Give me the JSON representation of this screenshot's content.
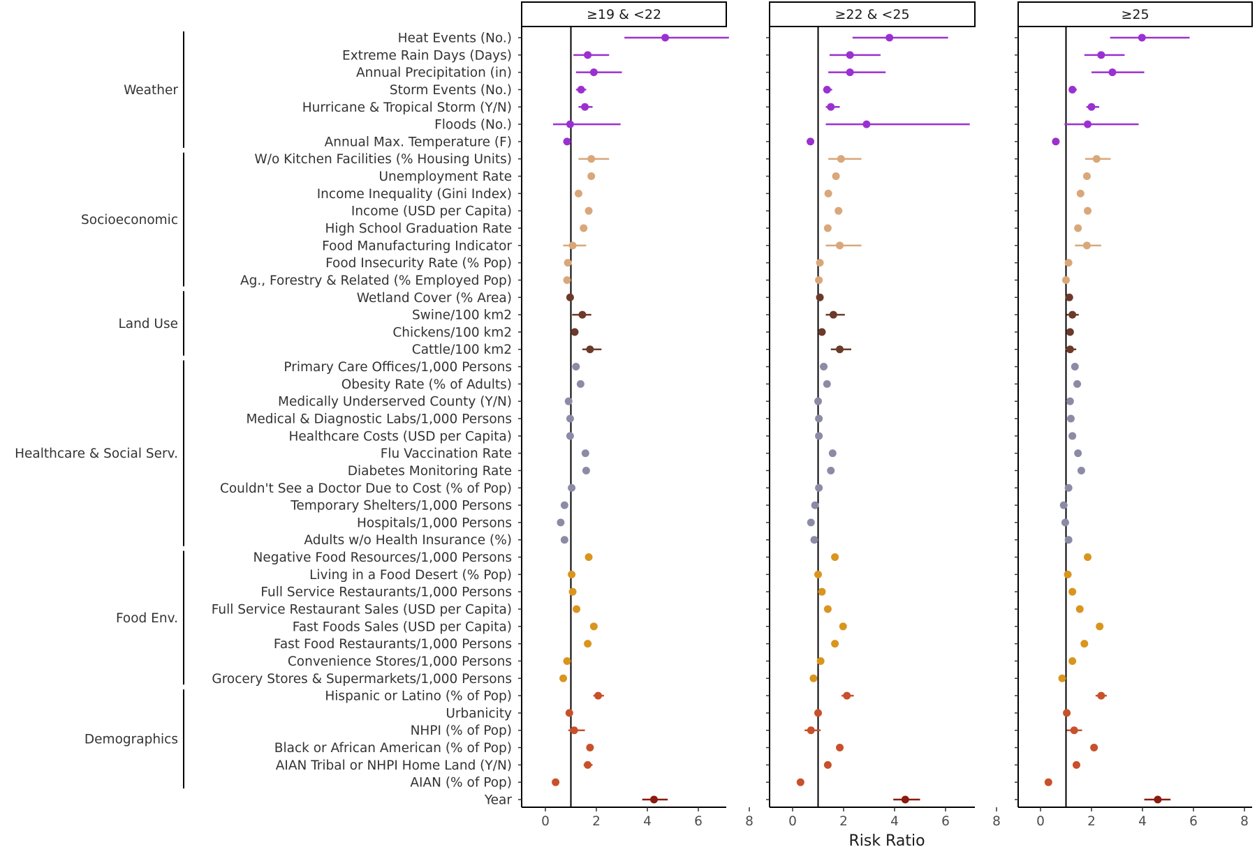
{
  "chart_data": {
    "type": "scatter",
    "subtype": "forest-plot",
    "xlabel": "Risk Ratio",
    "ylabel": "",
    "xlim": [
      -0.9,
      8.5
    ],
    "xticks": [
      0,
      2,
      4,
      6,
      8
    ],
    "reference_line": 1,
    "grid": false,
    "panels": [
      "≥19 & <22",
      "≥22 & <25",
      "≥25"
    ],
    "groups": [
      {
        "name": "Weather",
        "color": "#9B30D0",
        "start": 0,
        "end": 6
      },
      {
        "name": "Socioeconomic",
        "color": "#D9A77A",
        "start": 7,
        "end": 14
      },
      {
        "name": "Land Use",
        "color": "#6B3A2A",
        "start": 15,
        "end": 18
      },
      {
        "name": "Healthcare & Social Serv.",
        "color": "#8C8BA6",
        "start": 19,
        "end": 29
      },
      {
        "name": "Food Env.",
        "color": "#D9951E",
        "start": 30,
        "end": 37
      },
      {
        "name": "Demographics",
        "color": "#C8502A",
        "start": 38,
        "end": 43
      },
      {
        "name": "",
        "color": "#8B1A10",
        "start": 44,
        "end": 44
      }
    ],
    "rows": [
      {
        "label": "Heat Events  (No.)",
        "group": 0,
        "p": [
          [
            4.7,
            3.1,
            7.2
          ],
          [
            3.8,
            2.35,
            6.1
          ],
          [
            3.98,
            2.73,
            5.85
          ]
        ]
      },
      {
        "label": "Extreme Rain Days (Days)",
        "group": 0,
        "p": [
          [
            1.66,
            1.1,
            2.5
          ],
          [
            2.25,
            1.45,
            3.45
          ],
          [
            2.38,
            1.72,
            3.3
          ]
        ]
      },
      {
        "label": "Annual Precipitation (in)",
        "group": 0,
        "p": [
          [
            1.9,
            1.2,
            3.0
          ],
          [
            2.25,
            1.4,
            3.65
          ],
          [
            2.82,
            2.0,
            4.07
          ]
        ]
      },
      {
        "label": "Storm Events (No.)",
        "group": 0,
        "p": [
          [
            1.4,
            1.2,
            1.6
          ],
          [
            1.35,
            1.2,
            1.55
          ],
          [
            1.25,
            1.12,
            1.42
          ]
        ]
      },
      {
        "label": "Hurricane & Tropical Storm (Y/N)",
        "group": 0,
        "p": [
          [
            1.55,
            1.3,
            1.85
          ],
          [
            1.5,
            1.3,
            1.85
          ],
          [
            2.0,
            1.8,
            2.3
          ]
        ]
      },
      {
        "label": "Floods (No.)",
        "group": 0,
        "p": [
          [
            0.97,
            0.3,
            2.95
          ],
          [
            2.9,
            1.3,
            6.95
          ],
          [
            1.85,
            0.94,
            3.85
          ]
        ]
      },
      {
        "label": "Annual Max. Temperature (F)",
        "group": 0,
        "p": [
          [
            0.85,
            0.75,
            0.95
          ],
          [
            0.7,
            0.62,
            0.8
          ],
          [
            0.6,
            0.55,
            0.65
          ]
        ]
      },
      {
        "label": "W/o Kitchen Facilities (% Housing Units)",
        "group": 1,
        "p": [
          [
            1.8,
            1.3,
            2.5
          ],
          [
            1.9,
            1.4,
            2.7
          ],
          [
            2.2,
            1.75,
            2.75
          ]
        ]
      },
      {
        "label": "Unemployment Rate",
        "group": 1,
        "p": [
          [
            1.8,
            1.7,
            1.9
          ],
          [
            1.7,
            1.6,
            1.8
          ],
          [
            1.82,
            1.72,
            1.92
          ]
        ]
      },
      {
        "label": "Income Inequality (Gini Index)",
        "group": 1,
        "p": [
          [
            1.3,
            1.22,
            1.38
          ],
          [
            1.4,
            1.32,
            1.48
          ],
          [
            1.57,
            1.49,
            1.65
          ]
        ]
      },
      {
        "label": "Income (USD per Capita)",
        "group": 1,
        "p": [
          [
            1.7,
            1.6,
            1.8
          ],
          [
            1.8,
            1.68,
            1.95
          ],
          [
            1.85,
            1.75,
            1.95
          ]
        ]
      },
      {
        "label": "High School Graduation Rate",
        "group": 1,
        "p": [
          [
            1.5,
            1.42,
            1.58
          ],
          [
            1.38,
            1.3,
            1.46
          ],
          [
            1.47,
            1.39,
            1.55
          ]
        ]
      },
      {
        "label": "Food Manufacturing Indicator",
        "group": 1,
        "p": [
          [
            1.07,
            0.7,
            1.6
          ],
          [
            1.85,
            1.3,
            2.7
          ],
          [
            1.82,
            1.35,
            2.38
          ]
        ]
      },
      {
        "label": "Food Insecurity Rate (% Pop)",
        "group": 1,
        "p": [
          [
            0.88,
            0.8,
            0.96
          ],
          [
            1.07,
            0.99,
            1.15
          ],
          [
            1.1,
            1.02,
            1.18
          ]
        ]
      },
      {
        "label": "Ag., Forestry & Related (% Employed Pop)",
        "group": 1,
        "p": [
          [
            0.85,
            0.78,
            0.92
          ],
          [
            1.03,
            0.96,
            1.1
          ],
          [
            1.0,
            0.93,
            1.07
          ]
        ]
      },
      {
        "label": "Wetland Cover (% Area)",
        "group": 2,
        "p": [
          [
            0.97,
            0.9,
            1.04
          ],
          [
            1.07,
            1.0,
            1.14
          ],
          [
            1.13,
            1.06,
            1.2
          ]
        ]
      },
      {
        "label": "Swine/100 km2",
        "group": 2,
        "p": [
          [
            1.45,
            1.05,
            1.8
          ],
          [
            1.6,
            1.3,
            2.05
          ],
          [
            1.25,
            1.03,
            1.5
          ]
        ]
      },
      {
        "label": "Chickens/100 km2",
        "group": 2,
        "p": [
          [
            1.15,
            1.07,
            1.23
          ],
          [
            1.15,
            1.07,
            1.23
          ],
          [
            1.16,
            1.08,
            1.24
          ]
        ]
      },
      {
        "label": "Cattle/100 km2",
        "group": 2,
        "p": [
          [
            1.75,
            1.45,
            2.2
          ],
          [
            1.85,
            1.5,
            2.3
          ],
          [
            1.16,
            0.98,
            1.4
          ]
        ]
      },
      {
        "label": "Primary Care Offices/1,000 Persons",
        "group": 3,
        "p": [
          [
            1.2,
            1.13,
            1.27
          ],
          [
            1.22,
            1.15,
            1.29
          ],
          [
            1.35,
            1.28,
            1.42
          ]
        ]
      },
      {
        "label": "Obesity Rate (% of Adults)",
        "group": 3,
        "p": [
          [
            1.38,
            1.31,
            1.45
          ],
          [
            1.35,
            1.28,
            1.42
          ],
          [
            1.44,
            1.37,
            1.51
          ]
        ]
      },
      {
        "label": "Medically Underserved County  (Y/N)",
        "group": 3,
        "p": [
          [
            0.91,
            0.85,
            0.97
          ],
          [
            1.0,
            0.94,
            1.06
          ],
          [
            1.16,
            1.09,
            1.23
          ]
        ]
      },
      {
        "label": "Medical & Diagnostic Labs/1,000 Persons",
        "group": 3,
        "p": [
          [
            0.97,
            0.91,
            1.03
          ],
          [
            1.03,
            0.97,
            1.09
          ],
          [
            1.19,
            1.12,
            1.26
          ]
        ]
      },
      {
        "label": "Healthcare Costs (USD per Capita)",
        "group": 3,
        "p": [
          [
            0.97,
            0.91,
            1.03
          ],
          [
            1.03,
            0.97,
            1.09
          ],
          [
            1.25,
            1.18,
            1.32
          ]
        ]
      },
      {
        "label": "Flu Vaccination Rate",
        "group": 3,
        "p": [
          [
            1.57,
            1.49,
            1.65
          ],
          [
            1.57,
            1.47,
            1.7
          ],
          [
            1.47,
            1.39,
            1.55
          ]
        ]
      },
      {
        "label": "Diabetes Monitoring Rate",
        "group": 3,
        "p": [
          [
            1.6,
            1.52,
            1.68
          ],
          [
            1.5,
            1.42,
            1.6
          ],
          [
            1.6,
            1.52,
            1.68
          ]
        ]
      },
      {
        "label": "Couldn't See a Doctor Due to Cost (% of Pop)",
        "group": 3,
        "p": [
          [
            1.03,
            0.97,
            1.09
          ],
          [
            1.03,
            0.97,
            1.09
          ],
          [
            1.1,
            1.04,
            1.16
          ]
        ]
      },
      {
        "label": "Temporary Shelters/1,000 Persons",
        "group": 3,
        "p": [
          [
            0.75,
            0.69,
            0.81
          ],
          [
            0.88,
            0.82,
            0.94
          ],
          [
            0.91,
            0.85,
            0.97
          ]
        ]
      },
      {
        "label": "Hospitals/1,000 Persons",
        "group": 3,
        "p": [
          [
            0.6,
            0.54,
            0.66
          ],
          [
            0.72,
            0.66,
            0.78
          ],
          [
            0.97,
            0.91,
            1.03
          ]
        ]
      },
      {
        "label": "Adults w/o Health Insurance (%)",
        "group": 3,
        "p": [
          [
            0.75,
            0.69,
            0.81
          ],
          [
            0.85,
            0.79,
            0.91
          ],
          [
            1.1,
            1.04,
            1.16
          ]
        ]
      },
      {
        "label": "Negative Food Resources/1,000 Persons",
        "group": 4,
        "p": [
          [
            1.7,
            1.62,
            1.78
          ],
          [
            1.66,
            1.58,
            1.74
          ],
          [
            1.85,
            1.77,
            1.93
          ]
        ]
      },
      {
        "label": "Living in a Food Desert (% Pop)",
        "group": 4,
        "p": [
          [
            1.03,
            0.97,
            1.09
          ],
          [
            1.0,
            0.94,
            1.06
          ],
          [
            1.07,
            1.01,
            1.13
          ]
        ]
      },
      {
        "label": "Full Service Restaurants/1,000 Persons",
        "group": 4,
        "p": [
          [
            1.07,
            1.01,
            1.13
          ],
          [
            1.15,
            1.08,
            1.22
          ],
          [
            1.25,
            1.18,
            1.32
          ]
        ]
      },
      {
        "label": "Full Service Restaurant Sales (USD per Capita)",
        "group": 4,
        "p": [
          [
            1.22,
            1.15,
            1.29
          ],
          [
            1.38,
            1.31,
            1.45
          ],
          [
            1.54,
            1.47,
            1.61
          ]
        ]
      },
      {
        "label": "Fast Foods Sales (USD per Capita)",
        "group": 4,
        "p": [
          [
            1.9,
            1.8,
            2.0
          ],
          [
            1.98,
            1.88,
            2.08
          ],
          [
            2.32,
            2.22,
            2.42
          ]
        ]
      },
      {
        "label": "Fast Food Restaurants/1,000 Persons",
        "group": 4,
        "p": [
          [
            1.66,
            1.58,
            1.74
          ],
          [
            1.66,
            1.58,
            1.74
          ],
          [
            1.72,
            1.64,
            1.8
          ]
        ]
      },
      {
        "label": "Convenience Stores/1,000 Persons",
        "group": 4,
        "p": [
          [
            0.85,
            0.79,
            0.91
          ],
          [
            1.1,
            1.04,
            1.16
          ],
          [
            1.25,
            1.18,
            1.32
          ]
        ]
      },
      {
        "label": "Grocery Stores & Supermarkets/1,000 Persons",
        "group": 4,
        "p": [
          [
            0.7,
            0.64,
            0.76
          ],
          [
            0.82,
            0.76,
            0.88
          ],
          [
            0.85,
            0.79,
            0.91
          ]
        ]
      },
      {
        "label": "Hispanic or Latino (% of Pop)",
        "group": 5,
        "p": [
          [
            2.07,
            1.88,
            2.3
          ],
          [
            2.13,
            1.92,
            2.4
          ],
          [
            2.38,
            2.16,
            2.6
          ]
        ]
      },
      {
        "label": "Urbanicity",
        "group": 5,
        "p": [
          [
            0.94,
            0.88,
            1.0
          ],
          [
            1.0,
            0.94,
            1.06
          ],
          [
            1.03,
            0.97,
            1.09
          ]
        ]
      },
      {
        "label": "NHPI (% of Pop)",
        "group": 5,
        "p": [
          [
            1.13,
            0.9,
            1.55
          ],
          [
            0.72,
            0.47,
            1.1
          ],
          [
            1.32,
            1.03,
            1.63
          ]
        ]
      },
      {
        "label": "Black or African American (% of Pop)",
        "group": 5,
        "p": [
          [
            1.75,
            1.67,
            1.83
          ],
          [
            1.85,
            1.75,
            1.95
          ],
          [
            2.1,
            2.02,
            2.18
          ]
        ]
      },
      {
        "label": "AIAN Tribal or NHPI Home Land  (Y/N)",
        "group": 5,
        "p": [
          [
            1.66,
            1.5,
            1.85
          ],
          [
            1.38,
            1.25,
            1.52
          ],
          [
            1.41,
            1.33,
            1.49
          ]
        ]
      },
      {
        "label": "AIAN (% of Pop)",
        "group": 5,
        "p": [
          [
            0.4,
            0.34,
            0.46
          ],
          [
            0.31,
            0.25,
            0.37
          ],
          [
            0.31,
            0.25,
            0.37
          ]
        ]
      },
      {
        "label": "Year",
        "group": 6,
        "p": [
          [
            4.26,
            3.8,
            4.8
          ],
          [
            4.42,
            3.95,
            5.0
          ],
          [
            4.6,
            4.07,
            5.1
          ]
        ]
      }
    ]
  }
}
